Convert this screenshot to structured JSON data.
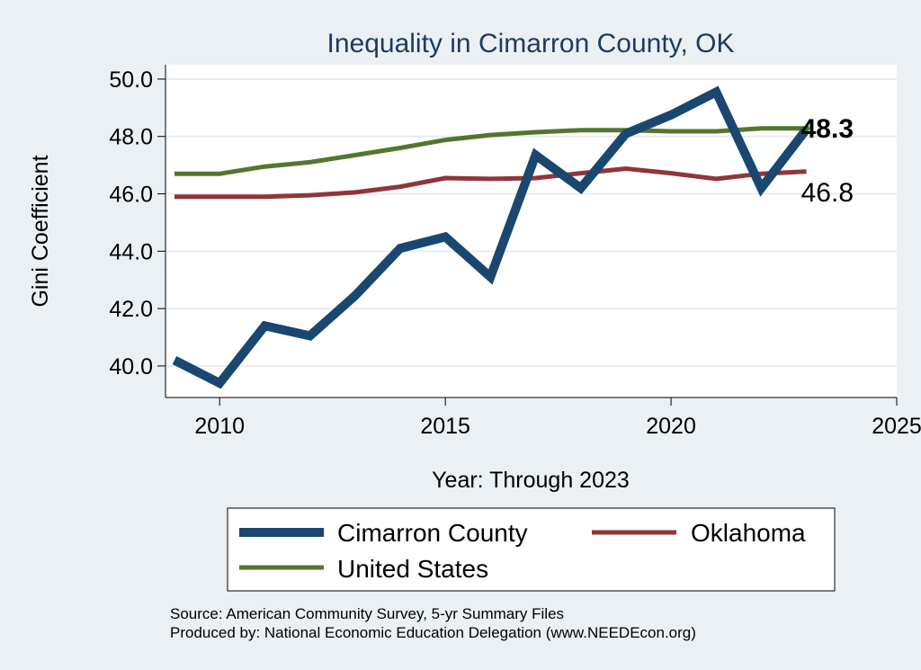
{
  "chart_data": {
    "type": "line",
    "title": "Inequality in Cimarron County, OK",
    "xlabel": "Year: Through 2023",
    "ylabel": "Gini Coefficient",
    "xlim": [
      2008.8,
      2025
    ],
    "ylim": [
      38.9,
      50.5
    ],
    "x_ticks": [
      2010,
      2015,
      2020,
      2025
    ],
    "y_ticks": [
      40.0,
      42.0,
      44.0,
      46.0,
      48.0,
      50.0
    ],
    "x": [
      2009,
      2010,
      2011,
      2012,
      2013,
      2014,
      2015,
      2016,
      2017,
      2018,
      2019,
      2020,
      2021,
      2022,
      2023
    ],
    "series": [
      {
        "name": "Cimarron County",
        "color": "#1a476f",
        "values": [
          40.2,
          39.4,
          41.4,
          41.05,
          42.45,
          44.1,
          44.5,
          43.1,
          47.35,
          46.2,
          48.1,
          48.75,
          49.55,
          46.2,
          48.25
        ]
      },
      {
        "name": "Oklahoma",
        "color": "#90353b",
        "values": [
          45.9,
          45.9,
          45.9,
          45.95,
          46.05,
          46.25,
          46.55,
          46.52,
          46.55,
          46.72,
          46.88,
          46.72,
          46.52,
          46.7,
          46.78
        ]
      },
      {
        "name": "United States",
        "color": "#55752f",
        "values": [
          46.7,
          46.7,
          46.95,
          47.1,
          47.35,
          47.6,
          47.88,
          48.05,
          48.15,
          48.22,
          48.22,
          48.18,
          48.18,
          48.28,
          48.28
        ]
      }
    ],
    "end_labels": [
      {
        "text": "48.3",
        "value": 48.3
      },
      {
        "text": "46.8",
        "value": 46.8
      }
    ],
    "legend": {
      "position": "bottom",
      "entries": [
        "Cimarron County",
        "Oklahoma",
        "United States"
      ]
    },
    "grid": true
  },
  "source_note": "Source: American Community Survey, 5-yr Summary Files",
  "producer_note": "Produced by: National Economic Education Delegation (www.NEEDEcon.org)",
  "colors": {
    "background": "#eaf0f4",
    "plot_background": "#ffffff",
    "grid": "#e6ecf0",
    "title": "#1f3a5f"
  }
}
